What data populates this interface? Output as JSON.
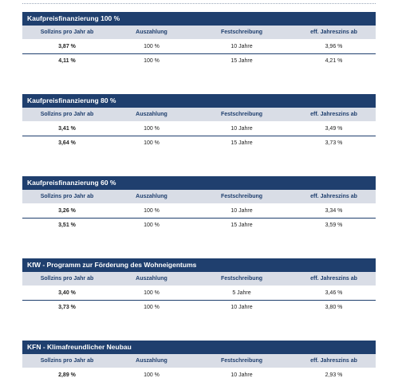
{
  "columns": {
    "solzins": "Sollzins pro Jahr ab",
    "auszahlung": "Auszahlung",
    "festschreibung": "Festschreibung",
    "effzins": "eff. Jahreszins ab"
  },
  "sections": [
    {
      "title": "Kaufpreisfinanzierung 100 %",
      "rows": [
        {
          "solzins": "3,87 %",
          "auszahlung": "100 %",
          "festschreibung": "10 Jahre",
          "effzins": "3,96 %"
        },
        {
          "solzins": "4,11 %",
          "auszahlung": "100 %",
          "festschreibung": "15 Jahre",
          "effzins": "4,21 %"
        }
      ]
    },
    {
      "title": "Kaufpreisfinanzierung 80 %",
      "rows": [
        {
          "solzins": "3,41 %",
          "auszahlung": "100 %",
          "festschreibung": "10 Jahre",
          "effzins": "3,49 %"
        },
        {
          "solzins": "3,64 %",
          "auszahlung": "100 %",
          "festschreibung": "15 Jahre",
          "effzins": "3,73 %"
        }
      ]
    },
    {
      "title": "Kaufpreisfinanzierung 60 %",
      "rows": [
        {
          "solzins": "3,26 %",
          "auszahlung": "100 %",
          "festschreibung": "10 Jahre",
          "effzins": "3,34 %"
        },
        {
          "solzins": "3,51 %",
          "auszahlung": "100 %",
          "festschreibung": "15 Jahre",
          "effzins": "3,59 %"
        }
      ]
    },
    {
      "title": "KfW - Programm zur Förderung des Wohneigentums",
      "rows": [
        {
          "solzins": "3,40 %",
          "auszahlung": "100 %",
          "festschreibung": "5 Jahre",
          "effzins": "3,46 %"
        },
        {
          "solzins": "3,73 %",
          "auszahlung": "100 %",
          "festschreibung": "10 Jahre",
          "effzins": "3,80 %"
        }
      ]
    },
    {
      "title": "KFN - Klimafreundlicher Neubau",
      "rows": [
        {
          "solzins": "2,89 %",
          "auszahlung": "100 %",
          "festschreibung": "10 Jahre",
          "effzins": "2,93 %"
        }
      ]
    }
  ]
}
